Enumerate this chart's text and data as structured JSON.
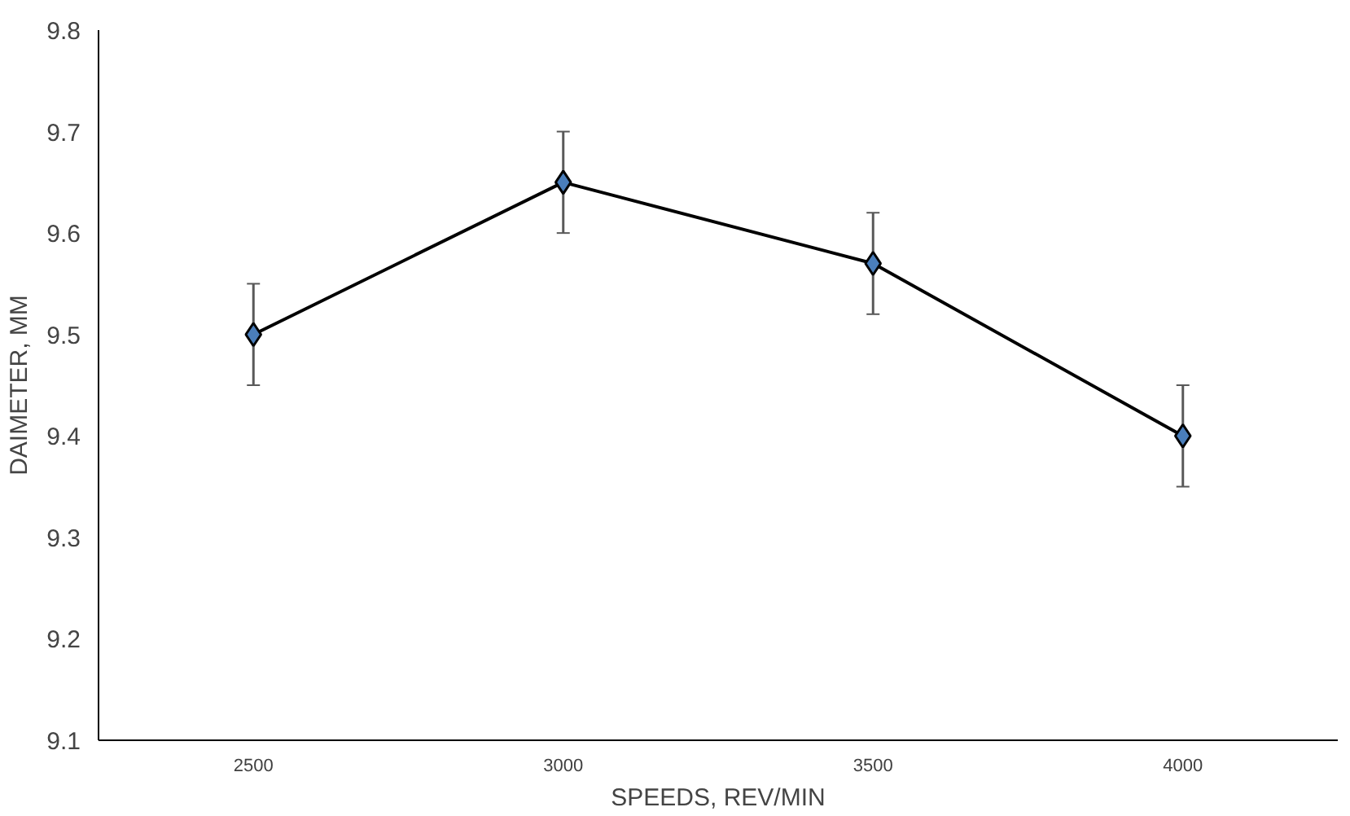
{
  "chart_data": {
    "type": "line",
    "xlabel": "SPEEDS, REV/MIN",
    "ylabel": "DAIMETER, MM",
    "categories": [
      "2500",
      "3000",
      "3500",
      "4000"
    ],
    "series": [
      {
        "color": "#000000",
        "values": [
          9.5,
          9.65,
          9.57,
          9.4
        ],
        "errors": [
          0.05,
          0.05,
          0.05,
          0.05
        ]
      }
    ],
    "ylim": [
      9.1,
      9.8
    ],
    "yticks": [
      9.1,
      9.2,
      9.3,
      9.4,
      9.5,
      9.6,
      9.7,
      9.8
    ],
    "grid": false,
    "marker": "diamond",
    "line_style": "solid"
  }
}
